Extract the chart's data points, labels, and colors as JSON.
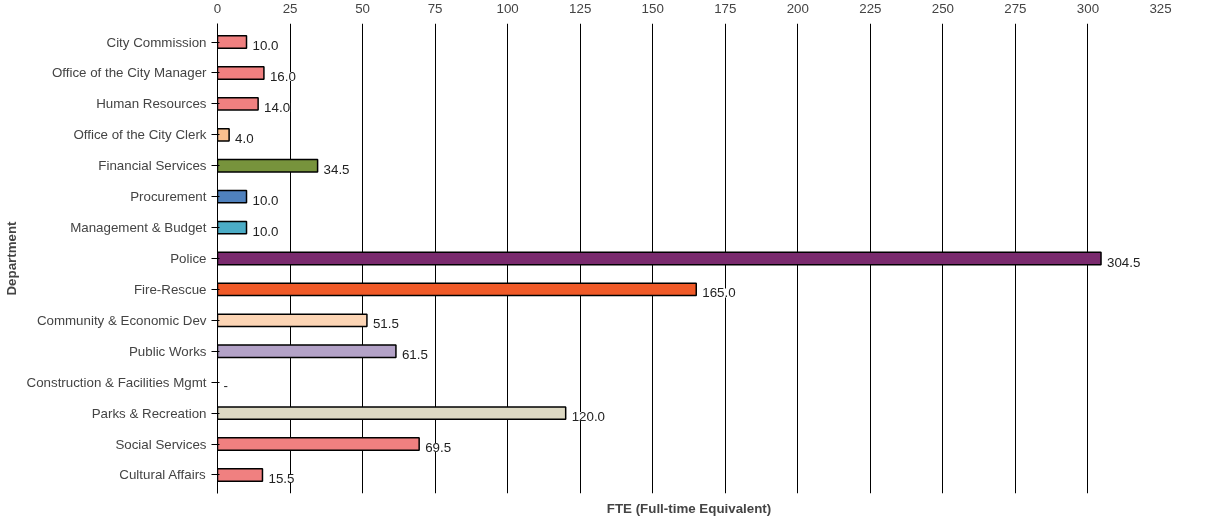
{
  "chart_data": {
    "type": "bar",
    "orientation": "horizontal",
    "xlabel": "FTE (Full-time Equivalent)",
    "ylabel": "Department",
    "categories": [
      "City Commission",
      "Office of the City Manager",
      "Human Resources",
      "Office of the City Clerk",
      "Financial Services",
      "Procurement",
      "Management & Budget",
      "Police",
      "Fire-Rescue",
      "Community & Economic Dev",
      "Public Works",
      "Construction & Facilities Mgmt",
      "Parks & Recreation",
      "Social Services",
      "Cultural Affairs"
    ],
    "values": [
      10.0,
      16.0,
      14.0,
      4.0,
      34.5,
      10.0,
      10.0,
      304.5,
      165.0,
      51.5,
      61.5,
      0,
      120.0,
      69.5,
      15.5
    ],
    "value_labels": [
      "10.0",
      "16.0",
      "14.0",
      "4.0",
      "34.5",
      "10.0",
      "10.0",
      "304.5",
      "165.0",
      "51.5",
      "61.5",
      "-",
      "120.0",
      "69.5",
      "15.5"
    ],
    "colors": [
      "#f08080",
      "#f08080",
      "#f08080",
      "#fbc08f",
      "#77933c",
      "#4f81bd",
      "#4bacc6",
      "#7a2a6e",
      "#f05a28",
      "#fcd5b5",
      "#b3a2c7",
      "#ffffff",
      "#ddd9c3",
      "#f08080",
      "#f08080"
    ],
    "xlim": [
      0,
      325
    ],
    "xticks": [
      0,
      25,
      50,
      75,
      100,
      125,
      150,
      175,
      200,
      225,
      250,
      275,
      300,
      325
    ],
    "grid": "x"
  }
}
